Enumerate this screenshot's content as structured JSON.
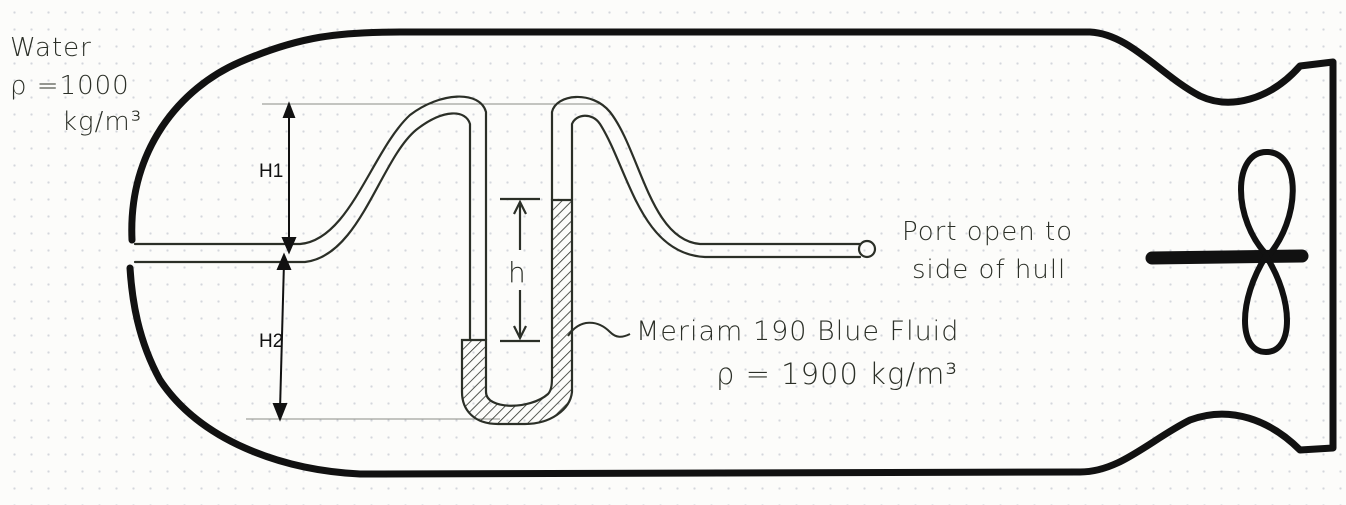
{
  "water": {
    "label": "Water",
    "rho_line1": "ρ =1000",
    "rho_line2": "kg/m³"
  },
  "dimensions": {
    "h1": "H1",
    "h2": "H2",
    "h": "h"
  },
  "port": {
    "line1": "Port open to",
    "line2": "side of hull"
  },
  "fluid": {
    "name": "Meriam 190 Blue Fluid",
    "rho": "ρ = 1900 kg/m³"
  },
  "colors": {
    "ink": "#111111",
    "pen": "#2b2f27",
    "paper": "#fcfcfa"
  }
}
